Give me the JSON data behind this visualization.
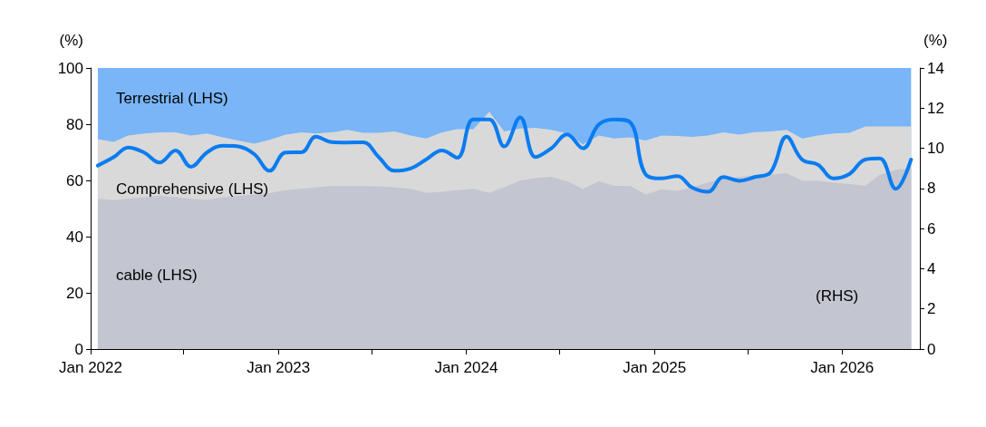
{
  "chart_data": {
    "type": "area",
    "stacked": true,
    "ylabel": "(%)",
    "y2label": "(%)",
    "x": [
      "2022-01-15",
      "2022-02-15",
      "2022-03-15",
      "2022-04-15",
      "2022-05-15",
      "2022-06-15",
      "2022-07-15",
      "2022-08-15",
      "2022-09-15",
      "2022-10-15",
      "2022-11-15",
      "2022-12-15",
      "2023-01-15",
      "2023-02-15",
      "2023-03-15",
      "2023-04-15",
      "2023-05-15",
      "2023-06-15",
      "2023-07-15",
      "2023-08-15",
      "2023-09-15",
      "2023-10-15",
      "2023-11-15",
      "2023-12-15",
      "2024-01-15",
      "2024-02-15",
      "2024-03-15",
      "2024-04-15",
      "2024-05-15",
      "2024-06-15",
      "2024-07-15",
      "2024-08-15",
      "2024-09-15",
      "2024-10-15",
      "2024-11-15",
      "2024-12-15",
      "2025-01-15",
      "2025-02-15",
      "2025-03-15",
      "2025-04-15",
      "2025-05-15",
      "2025-06-15",
      "2025-07-15",
      "2025-08-15",
      "2025-09-15",
      "2025-10-15",
      "2025-11-15",
      "2025-12-15",
      "2026-01-15",
      "2026-02-15",
      "2026-03-15",
      "2026-04-15",
      "2026-05-15"
    ],
    "xlim": [
      "2022-01-01",
      "2026-06-01"
    ],
    "xticks": [
      {
        "value": "2022-01-01",
        "label": "Jan 2022"
      },
      {
        "value": "2022-07-01",
        "label": null
      },
      {
        "value": "2023-01-01",
        "label": "Jan 2023"
      },
      {
        "value": "2023-07-01",
        "label": null
      },
      {
        "value": "2024-01-01",
        "label": "Jan 2024"
      },
      {
        "value": "2024-07-01",
        "label": null
      },
      {
        "value": "2025-01-01",
        "label": "Jan 2025"
      },
      {
        "value": "2025-07-01",
        "label": null
      },
      {
        "value": "2026-01-01",
        "label": "Jan 2026"
      }
    ],
    "ylim": [
      0,
      100
    ],
    "yticks": [
      0,
      20,
      40,
      60,
      80,
      100
    ],
    "y2lim": [
      0,
      14
    ],
    "y2ticks": [
      0,
      2,
      4,
      6,
      8,
      10,
      12,
      14
    ],
    "grid": false,
    "legend": false,
    "marker": "none",
    "series": [
      {
        "name": "cable (LHS)",
        "color": "#c3c5d0",
        "values": [
          53.5,
          53,
          53.5,
          54,
          54.5,
          54,
          53.5,
          53,
          54,
          54.5,
          55,
          55.5,
          56.5,
          57,
          57.5,
          58,
          58,
          58,
          57.9,
          57.5,
          57,
          55.6,
          56,
          56.5,
          57,
          55.6,
          57.6,
          59.9,
          60.8,
          61.3,
          59.7,
          57,
          59.7,
          58.1,
          58.1,
          55,
          56.8,
          56.3,
          57.6,
          59.2,
          60.6,
          61.3,
          61.8,
          62,
          62.6,
          59.9,
          59.9,
          59.2,
          58.7,
          58.1,
          62,
          63.7,
          64.4
        ]
      },
      {
        "name": "Comprehensive (LHS)",
        "color": "#d9d9d9",
        "values": [
          21.2,
          20.7,
          22.5,
          22.7,
          22.6,
          23.1,
          22.5,
          23.7,
          21.3,
          19.7,
          18.1,
          18.9,
          19.8,
          20.1,
          19.2,
          19.1,
          20,
          18.9,
          19,
          19.9,
          19,
          19.3,
          21.1,
          21.7,
          21.2,
          28.8,
          19.8,
          18.6,
          17.9,
          16.7,
          17,
          15.8,
          16.3,
          16.8,
          17.2,
          19.2,
          19.2,
          19.5,
          17.9,
          16.8,
          16.5,
          15,
          15.4,
          15.4,
          15.4,
          15,
          16.1,
          17.5,
          18.2,
          21.1,
          17.2,
          15.5,
          14.8
        ]
      },
      {
        "name": "Terrestrial (LHS)",
        "color": "#79b5f7",
        "values": [
          25.3,
          26.3,
          24,
          23.3,
          22.9,
          22.9,
          24,
          23.3,
          24.7,
          25.8,
          26.9,
          25.6,
          23.7,
          22.9,
          23.3,
          22.9,
          22,
          23.1,
          23.1,
          22.6,
          24,
          25.1,
          22.9,
          21.8,
          21.8,
          15.6,
          22.6,
          21.5,
          21.3,
          22,
          23.3,
          27.2,
          24,
          25.1,
          24.7,
          25.8,
          24,
          24.2,
          24.5,
          24,
          22.9,
          23.7,
          22.8,
          22.6,
          22,
          25.1,
          24,
          23.3,
          23.1,
          20.8,
          20.8,
          20.8,
          20.8
        ]
      },
      {
        "type": "line",
        "axis": "y2",
        "color": "#0a7cf0",
        "values": [
          9.14,
          9.56,
          10.04,
          9.79,
          9.29,
          9.89,
          9.08,
          9.79,
          10.13,
          10.09,
          9.71,
          8.88,
          9.79,
          9.8,
          10.58,
          10.31,
          10.29,
          10.3,
          9.56,
          8.88,
          8.99,
          9.44,
          9.89,
          9.53,
          11.44,
          11.44,
          10.09,
          11.54,
          9.56,
          10.01,
          10.69,
          10,
          11.19,
          11.44,
          11.29,
          8.7,
          8.5,
          8.62,
          8.05,
          7.83,
          8.57,
          8.38,
          8.57,
          8.81,
          10.58,
          9.44,
          9.18,
          8.5,
          8.72,
          9.44,
          9.49,
          7.98,
          9.44
        ]
      }
    ],
    "annotations": [
      "(RHS)"
    ]
  }
}
